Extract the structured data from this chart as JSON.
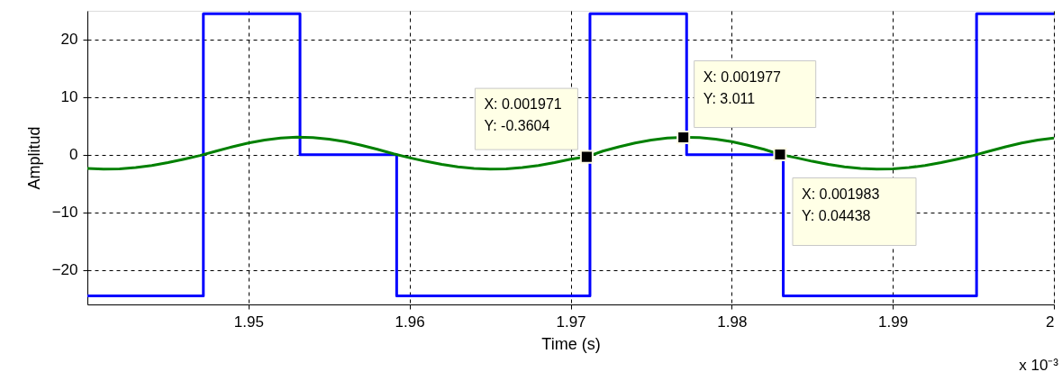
{
  "chart_data": {
    "type": "line",
    "xlabel": "Time (s)",
    "ylabel": "Amplitud",
    "xlim": [
      1.94,
      2.0
    ],
    "xticks": [
      1.95,
      1.96,
      1.97,
      1.98,
      1.99,
      2
    ],
    "ylim": [
      -26,
      25
    ],
    "yticks": [
      -20,
      -10,
      0,
      10,
      20
    ],
    "grid": true,
    "series": [
      {
        "type": "step",
        "color": "#0000ff",
        "x": [
          1.94,
          1.9472,
          1.9532,
          1.9592,
          1.9712,
          1.9772,
          1.9832,
          1.9952,
          2.0
        ],
        "values": [
          -24.5,
          24.5,
          0,
          -24.5,
          24.5,
          0,
          -24.5,
          24.5,
          24.5
        ]
      },
      {
        "type": "line",
        "color": "#008000",
        "x": [
          1.94,
          1.941,
          1.942,
          1.943,
          1.944,
          1.945,
          1.946,
          1.947,
          1.948,
          1.949,
          1.95,
          1.951,
          1.952,
          1.953,
          1.954,
          1.955,
          1.956,
          1.957,
          1.958,
          1.959,
          1.96,
          1.961,
          1.962,
          1.963,
          1.964,
          1.965,
          1.966,
          1.967,
          1.968,
          1.969,
          1.97,
          1.971,
          1.972,
          1.973,
          1.974,
          1.975,
          1.976,
          1.977,
          1.978,
          1.979,
          1.98,
          1.981,
          1.982,
          1.983,
          1.984,
          1.985,
          1.986,
          1.987,
          1.988,
          1.989,
          1.99,
          1.991,
          1.992,
          1.993,
          1.994,
          1.995,
          1.996,
          1.997,
          1.998,
          1.999,
          2.0
        ],
        "values": [
          -2.38,
          -2.5,
          -2.45,
          -2.23,
          -1.86,
          -1.36,
          -0.77,
          -0.13,
          0.63,
          1.38,
          2.04,
          2.56,
          2.9,
          3.05,
          2.98,
          2.72,
          2.27,
          1.66,
          0.94,
          0.16,
          -0.52,
          -1.14,
          -1.67,
          -2.1,
          -2.38,
          -2.5,
          -2.45,
          -2.23,
          -1.86,
          -1.36,
          -0.77,
          -0.36,
          0.63,
          1.38,
          2.04,
          2.56,
          2.9,
          3.011,
          2.98,
          2.72,
          2.27,
          1.66,
          0.94,
          0.044,
          -0.52,
          -1.14,
          -1.67,
          -2.1,
          -2.38,
          -2.5,
          -2.45,
          -2.23,
          -1.86,
          -1.36,
          -0.77,
          -0.13,
          0.63,
          1.38,
          2.04,
          2.56,
          2.9
        ]
      },
      {
        "type": "scatter",
        "marker": "square",
        "color": "#000000",
        "x": [
          1.971,
          1.977,
          1.983
        ],
        "values": [
          -0.3604,
          3.011,
          0.04438
        ]
      }
    ],
    "annotations": [
      {
        "text": "X: 0.001971\nY: -0.3604",
        "x": 1.971,
        "y": -0.3604
      },
      {
        "text": "X: 0.001977\nY: 3.011",
        "x": 1.977,
        "y": 3.011
      },
      {
        "text": "X: 0.001983\nY: 0.04438",
        "x": 1.983,
        "y": 0.04438
      },
      "x 10⁻³"
    ]
  }
}
